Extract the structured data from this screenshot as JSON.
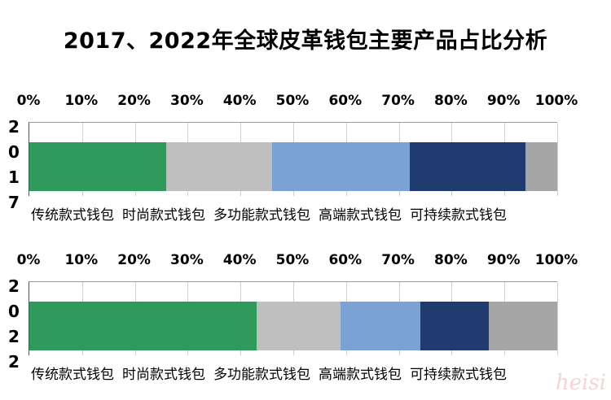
{
  "title": "2017、2022年全球皮革钱包主要产品占比分析",
  "chart_data": [
    {
      "type": "bar",
      "orientation": "horizontal",
      "stacked": true,
      "category": "2017",
      "xlim": [
        0,
        100
      ],
      "x_ticks": [
        "0%",
        "10%",
        "20%",
        "30%",
        "40%",
        "50%",
        "60%",
        "70%",
        "80%",
        "90%",
        "100%"
      ],
      "series": [
        {
          "name": "传统款式钱包",
          "value": 26,
          "color": "#2e9a5c"
        },
        {
          "name": "时尚款式钱包",
          "value": 20,
          "color": "#bfbfbf"
        },
        {
          "name": "多功能款式钱包",
          "value": 26,
          "color": "#7aa2d4"
        },
        {
          "name": "高端款式钱包",
          "value": 22,
          "color": "#1f3b70"
        },
        {
          "name": "可持续款式钱包",
          "value": 6,
          "color": "#a6a6a6"
        }
      ],
      "legend": "bottom"
    },
    {
      "type": "bar",
      "orientation": "horizontal",
      "stacked": true,
      "category": "2022",
      "xlim": [
        0,
        100
      ],
      "x_ticks": [
        "0%",
        "10%",
        "20%",
        "30%",
        "40%",
        "50%",
        "60%",
        "70%",
        "80%",
        "90%",
        "100%"
      ],
      "series": [
        {
          "name": "传统款式钱包",
          "value": 43,
          "color": "#2e9a5c"
        },
        {
          "name": "时尚款式钱包",
          "value": 16,
          "color": "#bfbfbf"
        },
        {
          "name": "多功能款式钱包",
          "value": 15,
          "color": "#7aa2d4"
        },
        {
          "name": "高端款式钱包",
          "value": 13,
          "color": "#1f3b70"
        },
        {
          "name": "可持续款式钱包",
          "value": 13,
          "color": "#a6a6a6"
        }
      ],
      "legend": "bottom"
    }
  ],
  "watermark": "heisi"
}
